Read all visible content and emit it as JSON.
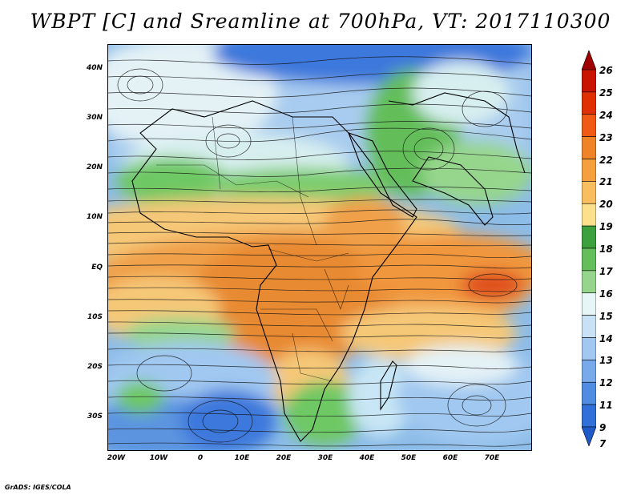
{
  "title": "WBPT [C] and Sreamline at 700hPa, VT: 2017110300",
  "footer": "GrADS: IGES/COLA",
  "lat_labels": [
    "40N",
    "30N",
    "20N",
    "10N",
    "EQ",
    "10S",
    "20S",
    "30S"
  ],
  "lon_labels": [
    "20W",
    "10W",
    "0",
    "10E",
    "20E",
    "30E",
    "40E",
    "50E",
    "60E",
    "70E"
  ],
  "colorbar": {
    "labels": [
      "26",
      "25",
      "24",
      "23",
      "22",
      "21",
      "20",
      "19",
      "18",
      "17",
      "16",
      "15",
      "14",
      "13",
      "12",
      "11",
      "9",
      "7"
    ],
    "colors": [
      "#a00000",
      "#c81400",
      "#e03000",
      "#f05a14",
      "#f08228",
      "#f5a03c",
      "#f8be60",
      "#fce08c",
      "#3ca03c",
      "#64be5a",
      "#96d68c",
      "#e6f5f5",
      "#c8e1f5",
      "#a0c8f0",
      "#78aaeb",
      "#508ce1",
      "#3070d8",
      "#1e5ac8"
    ]
  },
  "colors": {
    "warm": "#f0963c",
    "hot": "#e8641e",
    "mild": "#f5c878",
    "green": "#6ec864",
    "light_green": "#a8dc96",
    "pale": "#e8f6f8",
    "light_blue": "#b4d6f2",
    "blue": "#78aae8",
    "deep_blue": "#3c78dc",
    "streamline": "#111111"
  }
}
